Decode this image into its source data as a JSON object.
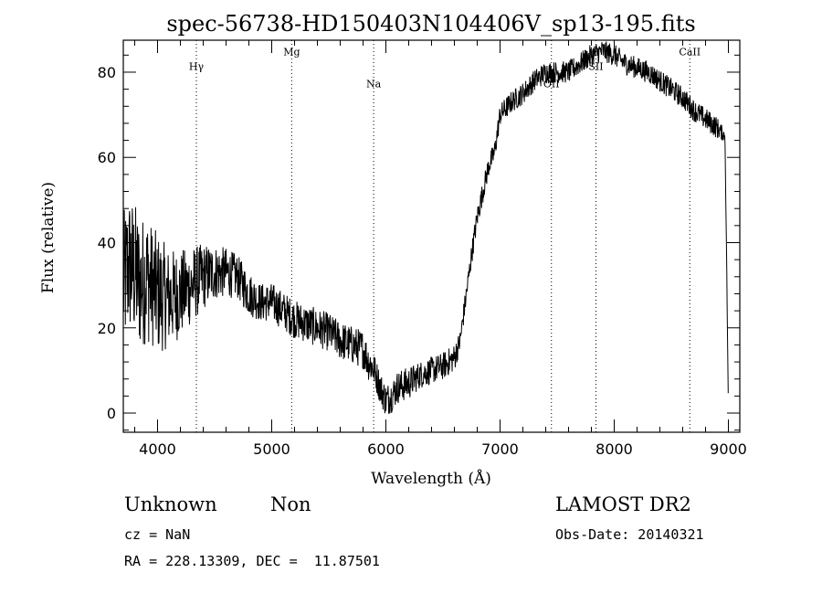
{
  "chart_data": {
    "type": "line",
    "title": "spec-56738-HD150403N104406V_sp13-195.fits",
    "xlabel": "Wavelength (Å)",
    "ylabel": "Flux (relative)",
    "xlim": [
      3700,
      9100
    ],
    "ylim": [
      -4.5,
      87.5
    ],
    "x_ticks": [
      4000,
      5000,
      6000,
      7000,
      8000,
      9000
    ],
    "y_ticks": [
      0,
      20,
      40,
      60,
      80
    ],
    "x_tick_labels": [
      "4000",
      "5000",
      "6000",
      "7000",
      "8000",
      "9000"
    ],
    "y_tick_labels": [
      "0",
      "20",
      "40",
      "60",
      "80"
    ],
    "grid": false,
    "line_color": "#000000",
    "series": [
      {
        "x": [
          3700,
          3750,
          3800,
          3850,
          3900,
          3950,
          4000,
          4100,
          4200,
          4300,
          4400,
          4500,
          4600,
          4700,
          4800,
          4900,
          5000,
          5100,
          5200,
          5300,
          5400,
          5500,
          5600,
          5700,
          5800,
          5850,
          5900,
          5950,
          6000,
          6050,
          6100,
          6200,
          6300,
          6400,
          6500,
          6600,
          6650,
          6700,
          6750,
          6800,
          6850,
          6900,
          6950,
          7000,
          7100,
          7200,
          7300,
          7400,
          7500,
          7600,
          7700,
          7800,
          7900,
          8000,
          8100,
          8200,
          8300,
          8400,
          8500,
          8600,
          8700,
          8800,
          8900,
          8970,
          8985,
          9000
        ],
        "y": [
          30,
          35,
          33,
          30,
          32,
          30,
          28,
          27,
          28,
          30,
          32,
          33,
          33,
          32,
          28,
          26,
          26,
          24,
          22,
          21,
          20,
          19,
          17,
          16,
          15,
          12,
          10,
          6,
          3,
          4,
          6,
          7,
          9,
          10,
          11,
          13,
          17,
          27,
          37,
          46,
          52,
          58,
          61,
          70,
          73,
          75,
          78,
          80,
          80,
          80,
          82,
          84,
          85,
          84,
          82,
          81,
          80,
          78,
          76,
          74,
          71,
          69,
          67,
          65,
          35,
          0
        ],
        "noise": [
          13,
          13,
          13,
          12,
          12,
          11,
          11,
          9,
          8,
          7,
          6,
          5,
          4.5,
          4,
          4,
          3.5,
          3.5,
          3.5,
          3.5,
          3.5,
          3.5,
          3.5,
          3.5,
          3.5,
          3.5,
          3.5,
          3,
          3,
          3,
          3,
          3,
          3,
          2.5,
          2.5,
          2.5,
          2.5,
          2,
          2,
          2,
          2,
          2,
          2,
          2,
          2,
          2,
          2,
          2,
          2,
          2,
          2,
          2,
          2,
          2,
          2,
          2,
          2,
          2,
          2,
          2,
          2,
          2,
          2,
          2,
          1,
          0,
          0
        ]
      }
    ],
    "lines": [
      {
        "label": "Hγ",
        "x": 4340,
        "label_y": 80.5
      },
      {
        "label": "Mg",
        "x": 5175,
        "label_y": 84
      },
      {
        "label": "Na",
        "x": 5893,
        "label_y": 76.5
      },
      {
        "label": "OII",
        "x": 7450,
        "label_y": 76.5
      },
      {
        "label": "SII",
        "x": 7840,
        "label_y": 80.5
      },
      {
        "label": "CaII",
        "x": 8662,
        "label_y": 84
      }
    ]
  },
  "info": {
    "object_class": "Unknown",
    "object_subclass": "Non",
    "cz": "cz = NaN",
    "radec": "RA = 228.13309, DEC =  11.87501",
    "survey": "LAMOST DR2",
    "obs_date": "Obs-Date: 20140321"
  }
}
